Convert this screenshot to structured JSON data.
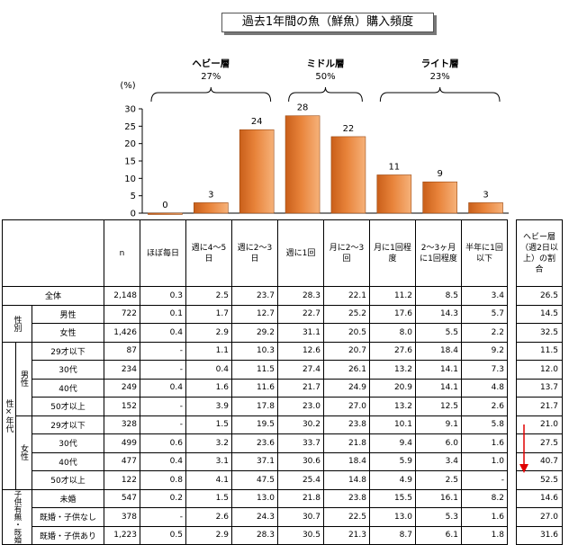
{
  "title": "過去1年間の魚（鮮魚）購入頻度",
  "chart_data": {
    "type": "bar",
    "ylabel": "(%)",
    "ylim": [
      0,
      30
    ],
    "yticks": [
      0,
      5,
      10,
      15,
      20,
      25,
      30
    ],
    "categories": [
      "ほぼ毎日",
      "週に4〜5日",
      "週に2〜3日",
      "週に1回",
      "月に2〜3回",
      "月に1回程度",
      "2〜3ヶ月に1回程度",
      "半年に1回以下"
    ],
    "values": [
      0,
      3,
      24,
      28,
      22,
      11,
      9,
      3
    ],
    "bar_color": "#e8833a",
    "groups": [
      {
        "name": "ヘビー層",
        "pct": "27%",
        "from": 0,
        "to": 2
      },
      {
        "name": "ミドル層",
        "pct": "50%",
        "from": 3,
        "to": 4
      },
      {
        "name": "ライト層",
        "pct": "23%",
        "from": 5,
        "to": 7
      }
    ]
  },
  "table": {
    "header": {
      "n": "n",
      "cols": [
        "ほぼ毎日",
        "週に4～5日",
        "週に2～3日",
        "週に1回",
        "月に2～3回",
        "月に1回程度",
        "2～3ヶ月に1回程度",
        "半年に1回以下"
      ],
      "heavy": "ヘビー層（週2日以上）の割合"
    },
    "group_labels": {
      "sex": "性別",
      "sexage": "性×年代",
      "male": "男性",
      "female": "女性",
      "child": "子供有無・既婚"
    },
    "rows": [
      {
        "label": "全体",
        "n": "2,148",
        "v": [
          "0.3",
          "2.5",
          "23.7",
          "28.3",
          "22.1",
          "11.2",
          "8.5",
          "3.4"
        ],
        "heavy": "26.5"
      },
      {
        "label": "男性",
        "n": "722",
        "v": [
          "0.1",
          "1.7",
          "12.7",
          "22.7",
          "25.2",
          "17.6",
          "14.3",
          "5.7"
        ],
        "heavy": "14.5"
      },
      {
        "label": "女性",
        "n": "1,426",
        "v": [
          "0.4",
          "2.9",
          "29.2",
          "31.1",
          "20.5",
          "8.0",
          "5.5",
          "2.2"
        ],
        "heavy": "32.5"
      },
      {
        "label": "29才以下",
        "n": "87",
        "v": [
          "-",
          "1.1",
          "10.3",
          "12.6",
          "20.7",
          "27.6",
          "18.4",
          "9.2"
        ],
        "heavy": "11.5"
      },
      {
        "label": "30代",
        "n": "234",
        "v": [
          "-",
          "0.4",
          "11.5",
          "27.4",
          "26.1",
          "13.2",
          "14.1",
          "7.3"
        ],
        "heavy": "12.0"
      },
      {
        "label": "40代",
        "n": "249",
        "v": [
          "0.4",
          "1.6",
          "11.6",
          "21.7",
          "24.9",
          "20.9",
          "14.1",
          "4.8"
        ],
        "heavy": "13.7"
      },
      {
        "label": "50才以上",
        "n": "152",
        "v": [
          "-",
          "3.9",
          "17.8",
          "23.0",
          "27.0",
          "13.2",
          "12.5",
          "2.6"
        ],
        "heavy": "21.7"
      },
      {
        "label": "29才以下",
        "n": "328",
        "v": [
          "-",
          "1.5",
          "19.5",
          "30.2",
          "23.8",
          "10.1",
          "9.1",
          "5.8"
        ],
        "heavy": "21.0"
      },
      {
        "label": "30代",
        "n": "499",
        "v": [
          "0.6",
          "3.2",
          "23.6",
          "33.7",
          "21.8",
          "9.4",
          "6.0",
          "1.6"
        ],
        "heavy": "27.5"
      },
      {
        "label": "40代",
        "n": "477",
        "v": [
          "0.4",
          "3.1",
          "37.1",
          "30.6",
          "18.4",
          "5.9",
          "3.4",
          "1.0"
        ],
        "heavy": "40.7"
      },
      {
        "label": "50才以上",
        "n": "122",
        "v": [
          "0.8",
          "4.1",
          "47.5",
          "25.4",
          "14.8",
          "4.9",
          "2.5",
          "-"
        ],
        "heavy": "52.5"
      },
      {
        "label": "未婚",
        "n": "547",
        "v": [
          "0.2",
          "1.5",
          "13.0",
          "21.8",
          "23.8",
          "15.5",
          "16.1",
          "8.2"
        ],
        "heavy": "14.6"
      },
      {
        "label": "既婚・子供なし",
        "n": "378",
        "v": [
          "-",
          "2.6",
          "24.3",
          "30.7",
          "22.5",
          "13.0",
          "5.3",
          "1.6"
        ],
        "heavy": "27.0"
      },
      {
        "label": "既婚・子供あり",
        "n": "1,223",
        "v": [
          "0.5",
          "2.9",
          "28.3",
          "30.5",
          "21.3",
          "8.7",
          "6.1",
          "1.8"
        ],
        "heavy": "31.6"
      }
    ]
  }
}
